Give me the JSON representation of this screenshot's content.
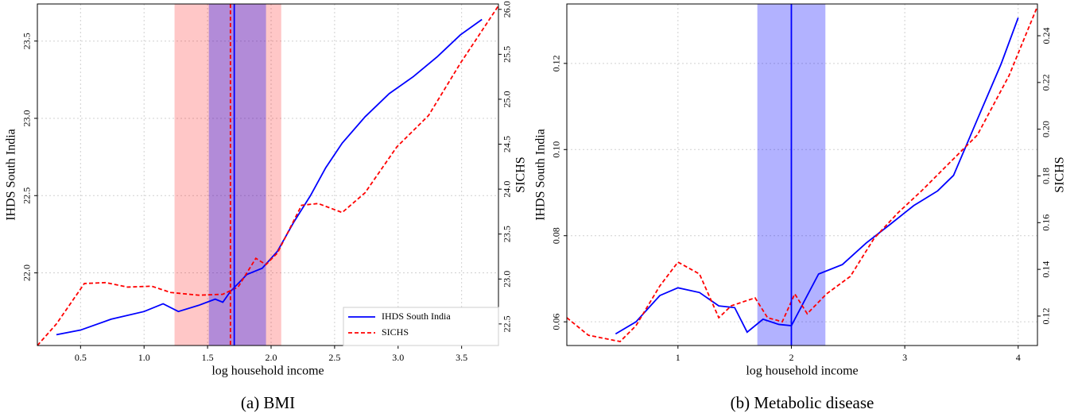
{
  "chart_data": [
    {
      "type": "line",
      "caption": "(a) BMI",
      "xlabel": "log household income",
      "ylabel": "IHDS South India",
      "y2label": "SICHS",
      "xlim": [
        0.16,
        3.79
      ],
      "xticks": [
        {
          "value": 0.5,
          "label": "0.5"
        },
        {
          "value": 1.0,
          "label": "1.0"
        },
        {
          "value": 1.5,
          "label": "1.5"
        },
        {
          "value": 2.0,
          "label": "2.0"
        },
        {
          "value": 2.5,
          "label": "2.5"
        },
        {
          "value": 3.0,
          "label": "3.0"
        },
        {
          "value": 3.5,
          "label": "3.5"
        }
      ],
      "ylim": [
        21.53,
        23.74
      ],
      "yticks": [
        {
          "value": 22.0,
          "label": "22.0"
        },
        22.5,
        {
          "value": 23.0,
          "label": "23.0"
        },
        23.5
      ],
      "y2lim": [
        22.26,
        26.06
      ],
      "y2ticks": [
        22.5,
        {
          "value": 23.0,
          "label": "23.0"
        },
        23.5,
        {
          "value": 24.0,
          "label": "24.0"
        },
        24.5,
        {
          "value": 25.0,
          "label": "25.0"
        },
        25.5,
        {
          "value": 26.0,
          "label": "26.0"
        }
      ],
      "grid": true,
      "legend": "lower right",
      "bands": [
        {
          "x": [
            1.24,
            2.08
          ],
          "color": "#ff0000",
          "opacity": 0.22
        },
        {
          "x": [
            1.51,
            1.96
          ],
          "color": "#0000ff",
          "opacity": 0.3
        }
      ],
      "vlines": [
        {
          "x": 1.68,
          "color": "#ff0000",
          "linestyle": "dashed"
        },
        {
          "x": 1.71,
          "color": "#0000ff",
          "linestyle": "solid"
        }
      ],
      "series": [
        {
          "name": "IHDS South India",
          "color": "#0000ff",
          "linestyle": "solid",
          "x": [
            0.31,
            0.5,
            0.74,
            1.0,
            1.15,
            1.27,
            1.43,
            1.56,
            1.62,
            1.68,
            1.81,
            1.93,
            2.05,
            2.18,
            2.31,
            2.43,
            2.56,
            2.74,
            2.93,
            3.12,
            3.31,
            3.49,
            3.66
          ],
          "values": [
            21.6,
            21.63,
            21.7,
            21.75,
            21.8,
            21.75,
            21.79,
            21.83,
            21.81,
            21.88,
            21.99,
            22.03,
            22.14,
            22.33,
            22.5,
            22.68,
            22.84,
            23.01,
            23.16,
            23.27,
            23.4,
            23.54,
            23.64
          ]
        },
        {
          "name": "SICHS",
          "color": "#ff0000",
          "linestyle": "dashed",
          "axis": "y2",
          "x": [
            0.16,
            0.31,
            0.53,
            0.7,
            0.87,
            1.06,
            1.21,
            1.43,
            1.62,
            1.74,
            1.88,
            1.96,
            2.05,
            2.24,
            2.37,
            2.56,
            2.74,
            2.99,
            3.24,
            3.49,
            3.79
          ],
          "values": [
            22.26,
            22.5,
            22.95,
            22.96,
            22.91,
            22.92,
            22.85,
            22.82,
            22.83,
            22.91,
            23.23,
            23.16,
            23.29,
            23.82,
            23.84,
            23.74,
            23.96,
            24.47,
            24.82,
            25.4,
            26.04
          ]
        }
      ]
    },
    {
      "type": "line",
      "caption": "(b) Metabolic disease",
      "xlabel": "log household income",
      "ylabel": "IHDS South India",
      "y2label": "SICHS",
      "xlim": [
        0.02,
        4.17
      ],
      "xticks": [
        1,
        2,
        3,
        4
      ],
      "ylim": [
        0.0545,
        0.1338
      ],
      "yticks": [
        0.06,
        0.08,
        {
          "value": 0.1,
          "label": "0.10"
        },
        0.12
      ],
      "y2lim": [
        0.1074,
        0.2536
      ],
      "y2ticks": [
        0.12,
        0.14,
        0.16,
        0.18,
        {
          "value": 0.2,
          "label": "0.20"
        },
        0.22,
        0.24
      ],
      "grid": true,
      "bands": [
        {
          "x": [
            1.7,
            2.3
          ],
          "color": "#0000ff",
          "opacity": 0.3
        }
      ],
      "vlines": [
        {
          "x": 2.0,
          "color": "#0000ff",
          "linestyle": "solid"
        }
      ],
      "series": [
        {
          "color": "#0000ff",
          "linestyle": "solid",
          "x": [
            0.45,
            0.63,
            0.84,
            1.0,
            1.19,
            1.36,
            1.5,
            1.61,
            1.75,
            1.89,
            2.0,
            2.11,
            2.24,
            2.45,
            2.66,
            2.87,
            3.08,
            3.29,
            3.43,
            3.64,
            3.85,
            4.0
          ],
          "values": [
            0.0572,
            0.06,
            0.0661,
            0.0679,
            0.0668,
            0.0637,
            0.0633,
            0.0576,
            0.0606,
            0.0594,
            0.0591,
            0.0646,
            0.0711,
            0.0733,
            0.0783,
            0.0826,
            0.087,
            0.0904,
            0.094,
            0.107,
            0.1199,
            0.1306
          ]
        },
        {
          "color": "#ff0000",
          "linestyle": "dashed",
          "axis": "y2",
          "x": [
            0.02,
            0.21,
            0.49,
            0.63,
            0.84,
            1.0,
            1.19,
            1.36,
            1.47,
            1.68,
            1.79,
            1.92,
            2.03,
            2.14,
            2.31,
            2.52,
            2.73,
            2.94,
            3.15,
            3.36,
            3.64,
            3.92,
            4.17
          ],
          "values": [
            0.1193,
            0.1118,
            0.1091,
            0.1159,
            0.1329,
            0.1431,
            0.138,
            0.1193,
            0.1244,
            0.1278,
            0.1193,
            0.1176,
            0.1295,
            0.121,
            0.1295,
            0.137,
            0.1533,
            0.1642,
            0.1737,
            0.1839,
            0.1975,
            0.223,
            0.2526
          ]
        }
      ]
    }
  ]
}
